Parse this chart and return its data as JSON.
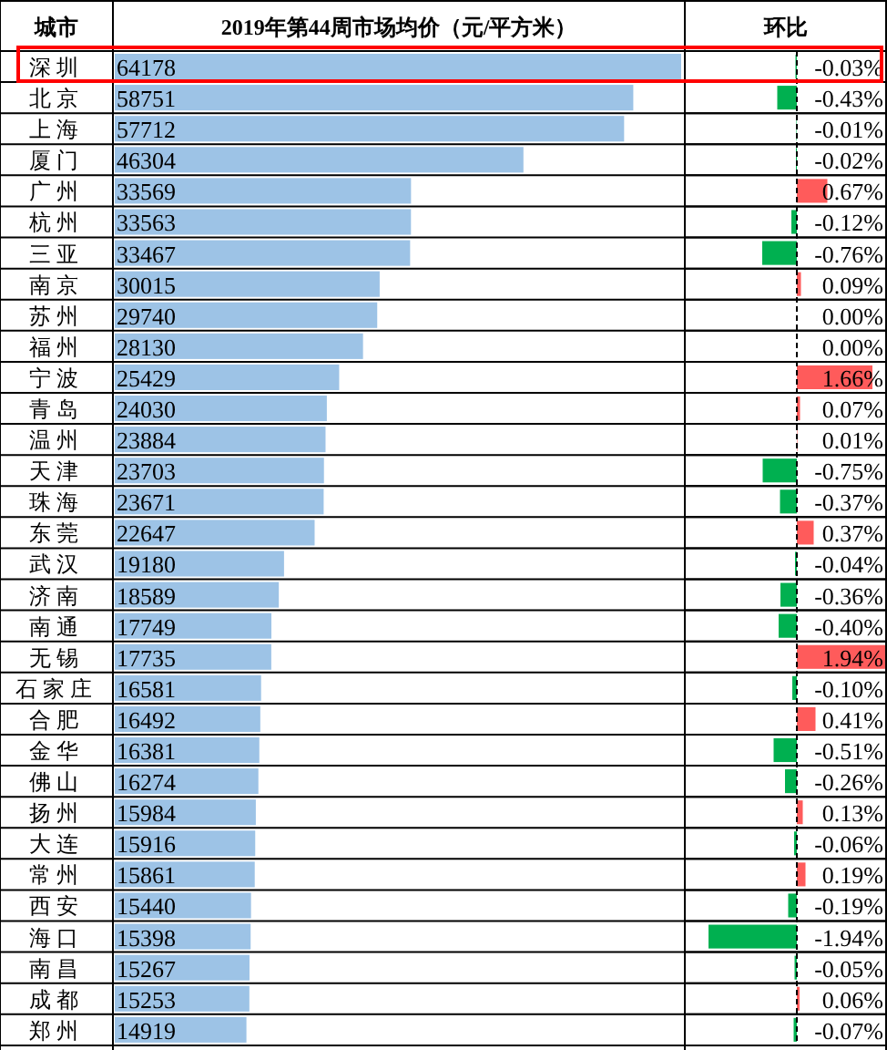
{
  "chart_data": [
    {
      "type": "bar",
      "orientation": "horizontal",
      "title": "2019年第44周市场均价（元/平方米）",
      "ylabel": "城市",
      "grid": true,
      "data_labels": true,
      "color": "#9dc3e6",
      "categories": [
        "深圳",
        "北京",
        "上海",
        "厦门",
        "广州",
        "杭州",
        "三亚",
        "南京",
        "苏州",
        "福州",
        "宁波",
        "青岛",
        "温州",
        "天津",
        "珠海",
        "东莞",
        "武汉",
        "济南",
        "南通",
        "无锡",
        "石家庄",
        "合肥",
        "金华",
        "佛山",
        "扬州",
        "大连",
        "常州",
        "西安",
        "海口",
        "南昌",
        "成都",
        "郑州"
      ],
      "values": [
        64178,
        58751,
        57712,
        46304,
        33569,
        33563,
        33467,
        30015,
        29740,
        28130,
        25429,
        24030,
        23884,
        23703,
        23671,
        22647,
        19180,
        18589,
        17749,
        17735,
        16581,
        16492,
        16381,
        16274,
        15984,
        15916,
        15861,
        15440,
        15398,
        15267,
        15253,
        14919
      ]
    },
    {
      "type": "bar",
      "orientation": "horizontal",
      "title": "环比",
      "grid": true,
      "categories": [
        null,
        null,
        null,
        null,
        null,
        null,
        null,
        null,
        null,
        null,
        null,
        null,
        null,
        null,
        null,
        null,
        null,
        null,
        null,
        null,
        null,
        null,
        null,
        null,
        null,
        null,
        null,
        null,
        null,
        null,
        null,
        null
      ],
      "values": [
        -0.03,
        -0.43,
        -0.01,
        -0.02,
        0.67,
        -0.12,
        -0.76,
        0.09,
        0,
        0,
        1.66,
        0.07,
        0.01,
        -0.75,
        -0.37,
        0.37,
        -0.04,
        -0.36,
        -0.4,
        1.94,
        -0.1,
        0.41,
        -0.51,
        -0.26,
        0.13,
        -0.06,
        0.19,
        -0.19,
        -1.94,
        -0.05,
        0.06,
        -0.07
      ],
      "value_labels": [
        "-0.03%",
        "-0.43%",
        "-0.01%",
        "-0.02%",
        "0.67%",
        "-0.12%",
        "-0.76%",
        "0.09%",
        "0.00%",
        "0.00%",
        "1.66%",
        "0.07%",
        "0.01%",
        "-0.75%",
        "-0.37%",
        "0.37%",
        "-0.04%",
        "-0.36%",
        "-0.40%",
        "1.94%",
        "-0.10%",
        "0.41%",
        "-0.51%",
        "-0.26%",
        "0.13%",
        "-0.06%",
        "0.19%",
        "-0.19%",
        "-1.94%",
        "-0.05%",
        "0.06%",
        "-0.07%"
      ],
      "colors": [
        "#00b050",
        "#00b050",
        "#00b050",
        "#00b050",
        "#ff5b5b",
        "#00b050",
        "#00b050",
        "#ff5b5b",
        "#ff5b5b",
        "#ff5b5b",
        "#ff5b5b",
        "#ff5b5b",
        "#ff5b5b",
        "#00b050",
        "#00b050",
        "#ff5b5b",
        "#00b050",
        "#00b050",
        "#00b050",
        "#ff5b5b",
        "#00b050",
        "#ff5b5b",
        "#00b050",
        "#00b050",
        "#ff5b5b",
        "#00b050",
        "#ff5b5b",
        "#00b050",
        "#00b050",
        "#00b050",
        "#ff5b5b",
        "#00b050"
      ],
      "ref_lines": [
        {
          "axis": "x",
          "value": 0,
          "line_style": "dashed",
          "color": "#000000"
        }
      ]
    }
  ]
}
